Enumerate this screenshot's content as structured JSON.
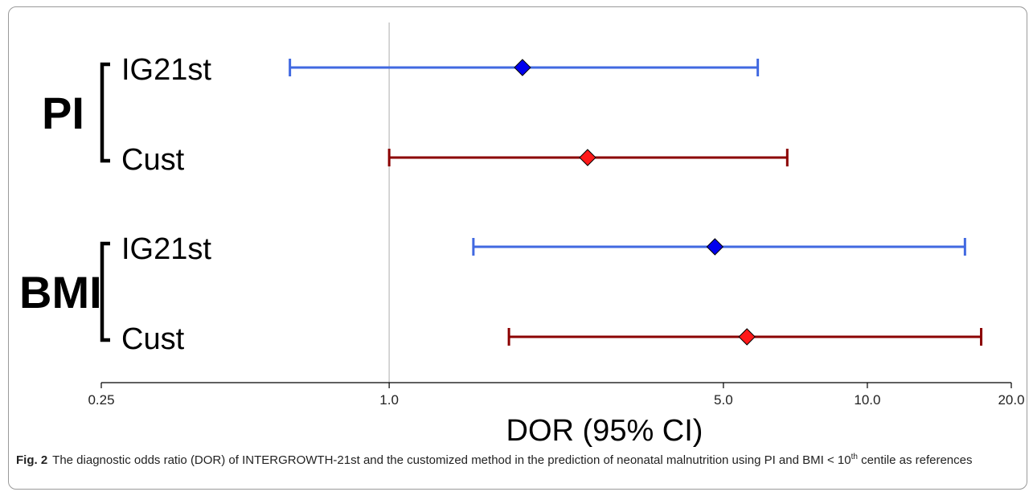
{
  "chart_data": {
    "type": "forest",
    "x_scale": "log",
    "xlabel": "DOR (95% CI)",
    "xlim": [
      0.25,
      20.0
    ],
    "reference_line": 1.0,
    "ticks": [
      {
        "value": 0.25,
        "label": "0.25"
      },
      {
        "value": 1.0,
        "label": "1.0"
      },
      {
        "value": 5.0,
        "label": "5.0"
      },
      {
        "value": 10.0,
        "label": "10.0"
      },
      {
        "value": 20.0,
        "label": "20.0"
      }
    ],
    "groups": [
      {
        "label": "PI",
        "rows": [
          {
            "label": "IG21st",
            "estimate": 1.9,
            "lower": 0.62,
            "upper": 5.9,
            "color": "#4169e1",
            "marker": "#0000ee"
          },
          {
            "label": "Cust",
            "estimate": 2.6,
            "lower": 1.0,
            "upper": 6.8,
            "color": "#8b0000",
            "marker": "#ff1a1a"
          }
        ]
      },
      {
        "label": "BMI",
        "rows": [
          {
            "label": "IG21st",
            "estimate": 4.8,
            "lower": 1.5,
            "upper": 16.0,
            "color": "#4169e1",
            "marker": "#0000ee"
          },
          {
            "label": "Cust",
            "estimate": 5.6,
            "lower": 1.78,
            "upper": 17.3,
            "color": "#8b0000",
            "marker": "#ff1a1a"
          }
        ]
      }
    ]
  },
  "caption": {
    "fig_label": "Fig. 2",
    "text_main": "The diagnostic odds ratio (DOR) of INTERGROWTH-21st and the customized method in the prediction of neonatal malnutrition using PI and BMI < 10",
    "text_sup": "th",
    "text_end": " centile as references"
  }
}
